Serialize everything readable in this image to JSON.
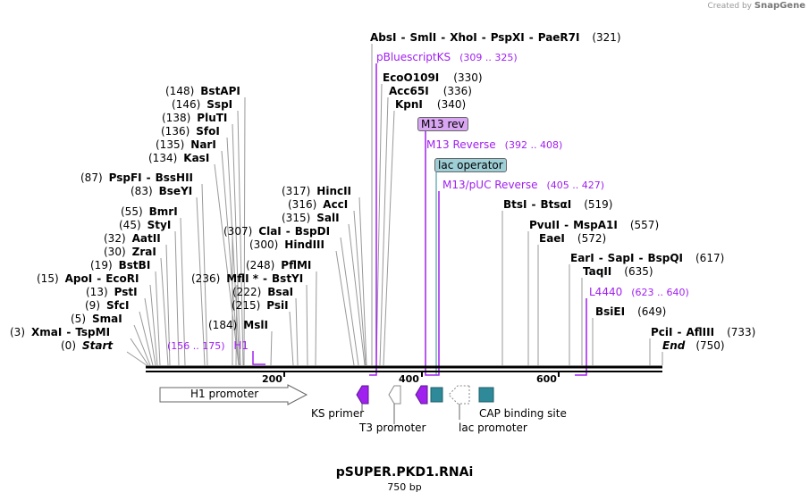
{
  "credit": {
    "prefix": "Created by",
    "brand": "SnapGene"
  },
  "map": {
    "title": "pSUPER.PKD1.RNAi",
    "size": "750 bp"
  },
  "ruler": {
    "ticks": [
      "200",
      "400",
      "600"
    ]
  },
  "sites": [
    {
      "num": "(321)",
      "names": [
        "AbsI",
        "SmlI",
        "XhoI",
        "PspXI",
        "PaeR7I"
      ],
      "numRight": true
    },
    {
      "num": "(330)",
      "names": [
        "EcoO109I"
      ],
      "numRight": true
    },
    {
      "num": "(336)",
      "names": [
        "Acc65I"
      ],
      "numRight": true
    },
    {
      "num": "(340)",
      "names": [
        "KpnI"
      ],
      "numRight": true
    },
    {
      "num": "(519)",
      "names": [
        "BtsI",
        "BtsαI"
      ],
      "numRight": true
    },
    {
      "num": "(557)",
      "names": [
        "PvuII",
        "MspA1I"
      ],
      "numRight": true
    },
    {
      "num": "(572)",
      "names": [
        "EaeI"
      ],
      "numRight": true
    },
    {
      "num": "(617)",
      "names": [
        "EarI",
        "SapI",
        "BspQI"
      ],
      "numRight": true
    },
    {
      "num": "(635)",
      "names": [
        "TaqII"
      ],
      "numRight": true
    },
    {
      "num": "(649)",
      "names": [
        "BsiEI"
      ],
      "numRight": true
    },
    {
      "num": "(733)",
      "names": [
        "PciI",
        "AflIII"
      ],
      "numRight": true
    },
    {
      "num": "(750)",
      "names": [
        "End"
      ],
      "numRight": true,
      "italic": true
    },
    {
      "num": "(148)",
      "names": [
        "BstAPI"
      ]
    },
    {
      "num": "(146)",
      "names": [
        "SspI"
      ]
    },
    {
      "num": "(138)",
      "names": [
        "PluTI"
      ]
    },
    {
      "num": "(136)",
      "names": [
        "SfoI"
      ]
    },
    {
      "num": "(135)",
      "names": [
        "NarI"
      ]
    },
    {
      "num": "(134)",
      "names": [
        "KasI"
      ]
    },
    {
      "num": "(87)",
      "names": [
        "PspFI",
        "BssHII"
      ]
    },
    {
      "num": "(83)",
      "names": [
        "BseYI"
      ]
    },
    {
      "num": "(55)",
      "names": [
        "BmrI"
      ]
    },
    {
      "num": "(45)",
      "names": [
        "StyI"
      ]
    },
    {
      "num": "(32)",
      "names": [
        "AatII"
      ]
    },
    {
      "num": "(30)",
      "names": [
        "ZraI"
      ]
    },
    {
      "num": "(19)",
      "names": [
        "BstBI"
      ]
    },
    {
      "num": "(15)",
      "names": [
        "ApoI",
        "EcoRI"
      ]
    },
    {
      "num": "(13)",
      "names": [
        "PstI"
      ]
    },
    {
      "num": "(9)",
      "names": [
        "SfcI"
      ]
    },
    {
      "num": "(5)",
      "names": [
        "SmaI"
      ]
    },
    {
      "num": "(3)",
      "names": [
        "XmaI",
        "TspMI"
      ]
    },
    {
      "num": "(0)",
      "names": [
        "Start"
      ],
      "italic": true
    },
    {
      "num": "(317)",
      "names": [
        "HincII"
      ]
    },
    {
      "num": "(316)",
      "names": [
        "AccI"
      ]
    },
    {
      "num": "(315)",
      "names": [
        "SalI"
      ]
    },
    {
      "num": "(307)",
      "names": [
        "ClaI",
        "BspDI"
      ]
    },
    {
      "num": "(300)",
      "names": [
        "HindIII"
      ]
    },
    {
      "num": "(248)",
      "names": [
        "PflMI"
      ]
    },
    {
      "num": "(236)",
      "names": [
        "MflI *",
        "BstYI"
      ]
    },
    {
      "num": "(222)",
      "names": [
        "BsaI"
      ]
    },
    {
      "num": "(215)",
      "names": [
        "PsiI"
      ]
    },
    {
      "num": "(184)",
      "names": [
        "MslI"
      ]
    }
  ],
  "primers": [
    {
      "name": "pBluescriptKS",
      "range": "(309 .. 325)"
    },
    {
      "name": "M13 Reverse",
      "range": "(392 .. 408)"
    },
    {
      "name": "M13/pUC Reverse",
      "range": "(405 .. 427)"
    },
    {
      "name": "L4440",
      "range": "(623 .. 640)"
    },
    {
      "name": "H1",
      "range": "(156 .. 175)"
    }
  ],
  "boxLabels": {
    "m13rev": "M13 rev",
    "lacop": "lac operator"
  },
  "features": {
    "h1promoter": "H1 promoter",
    "ksprimer": "KS primer",
    "t3promoter": "T3 promoter",
    "lacpromoter": "lac promoter",
    "capsite": "CAP binding site"
  },
  "colors": {
    "primer": "#a020f0",
    "m13box": "#d9a6f2",
    "lacbox": "#9fcfd6",
    "teal": "#2e8a99"
  }
}
